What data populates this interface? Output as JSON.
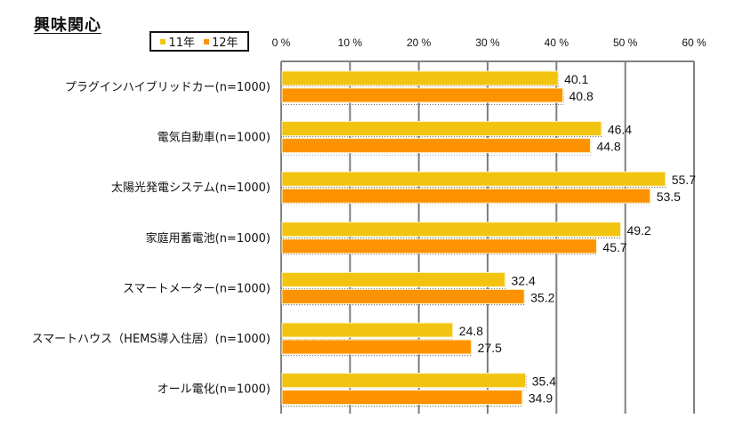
{
  "chart_data": {
    "type": "bar",
    "orientation": "horizontal",
    "title": "興味関心",
    "xlabel": "",
    "ylabel": "",
    "xlim": [
      0,
      60
    ],
    "x_ticks": [
      0,
      10,
      20,
      30,
      40,
      50,
      60
    ],
    "x_tick_labels": [
      "0 %",
      "10 %",
      "20 %",
      "30 %",
      "40 %",
      "50 %",
      "60 %"
    ],
    "grid": true,
    "legend_position": "top-left",
    "categories": [
      "プラグインハイブリッドカー(n=1000)",
      "電気自動車(n=1000)",
      "太陽光発電システム(n=1000)",
      "家庭用蓄電池(n=1000)",
      "スマートメーター(n=1000)",
      "スマートハウス（HEMS導入住居）(n=1000)",
      "オール電化(n=1000)"
    ],
    "series": [
      {
        "name": "11年",
        "color": "#F2C40F",
        "values": [
          40.1,
          46.4,
          55.7,
          49.2,
          32.4,
          24.8,
          35.4
        ]
      },
      {
        "name": "12年",
        "color": "#FF9200",
        "values": [
          40.8,
          44.8,
          53.5,
          45.7,
          35.2,
          27.5,
          34.9
        ]
      }
    ]
  }
}
